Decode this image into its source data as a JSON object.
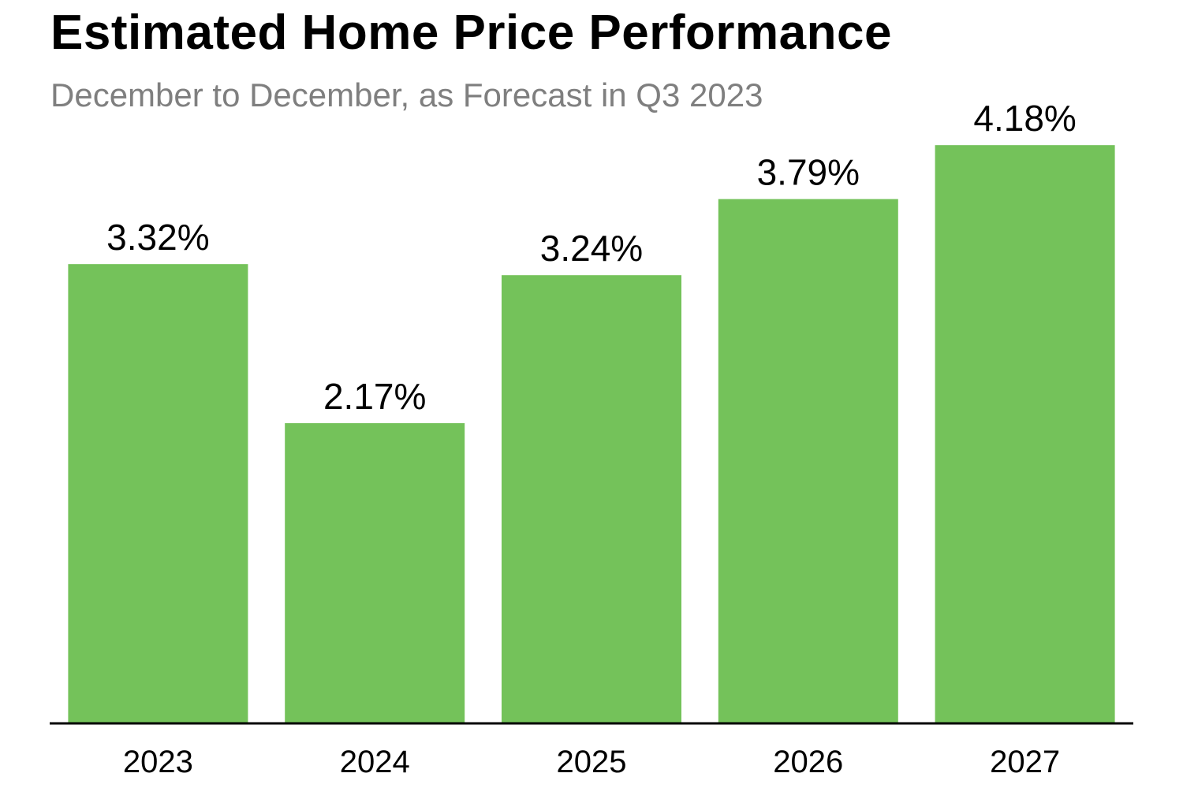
{
  "chart_data": {
    "type": "bar",
    "title": "Estimated Home Price Performance",
    "subtitle": "December to December, as Forecast in Q3 2023",
    "categories": [
      "2023",
      "2024",
      "2025",
      "2026",
      "2027"
    ],
    "values": [
      3.32,
      2.17,
      3.24,
      3.79,
      4.18
    ],
    "data_labels": [
      "3.32%",
      "2.17%",
      "3.24%",
      "3.79%",
      "4.18%"
    ],
    "xlabel": "",
    "ylabel": "",
    "ylim": [
      0,
      4.5
    ],
    "grid": false,
    "legend": "none",
    "colors": {
      "bar": "#74c25a",
      "axis": "#000000",
      "title": "#000000",
      "subtitle": "#7f7f7f",
      "label": "#000000"
    }
  }
}
